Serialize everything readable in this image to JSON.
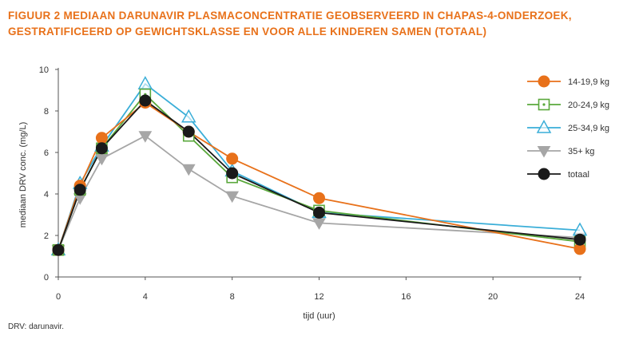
{
  "figure": {
    "title_line1": "FIGUUR 2  MEDIAAN DARUNAVIR PLASMACONCENTRATIE GEOBSERVEERD IN CHAPAS-4-ONDERZOEK,",
    "title_line2": "GESTRATIFICEERD OP GEWICHTSKLASSE EN VOOR ALLE KINDEREN SAMEN (TOTAAL)",
    "footnote": "DRV: darunavir."
  },
  "chart_data": {
    "type": "line",
    "title": "FIGUUR 2  MEDIAAN DARUNAVIR PLASMACONCENTRATIE GEOBSERVEERD IN CHAPAS-4-ONDERZOEK, GESTRATIFICEERD OP GEWICHTSKLASSE EN VOOR ALLE KINDEREN SAMEN (TOTAAL)",
    "xlabel": "tijd (uur)",
    "ylabel": "mediaan DRV conc. (mg/L)",
    "xlim": [
      0,
      24
    ],
    "ylim": [
      0,
      10
    ],
    "xticks": [
      0,
      4,
      8,
      12,
      16,
      20,
      24
    ],
    "yticks": [
      0,
      2,
      4,
      6,
      8,
      10
    ],
    "grid": false,
    "legend_position": "top-right",
    "series": [
      {
        "name": "14-19,9 kg",
        "marker": "filled-circle",
        "color": "#e8711a",
        "x": [
          0,
          1,
          2,
          4,
          6,
          8,
          12,
          24
        ],
        "y": [
          1.3,
          4.4,
          6.7,
          8.4,
          7.0,
          5.7,
          3.8,
          1.35
        ]
      },
      {
        "name": "20-24,9 kg",
        "marker": "open-square-dot",
        "color": "#5aa83c",
        "x": [
          0,
          1,
          2,
          4,
          6,
          8,
          12,
          24
        ],
        "y": [
          1.3,
          4.2,
          6.2,
          8.8,
          6.8,
          4.8,
          3.2,
          1.7
        ]
      },
      {
        "name": "25-34,9 kg",
        "marker": "open-triangle-up",
        "color": "#3aaed8",
        "x": [
          0,
          1,
          2,
          4,
          6,
          8,
          12,
          24
        ],
        "y": [
          1.3,
          4.5,
          6.3,
          9.3,
          7.7,
          5.1,
          3.1,
          2.25
        ]
      },
      {
        "name": "35+ kg",
        "marker": "filled-triangle-down",
        "color": "#a6a6a6",
        "x": [
          0,
          1,
          2,
          4,
          6,
          8,
          12,
          24
        ],
        "y": [
          1.3,
          3.8,
          5.7,
          6.8,
          5.2,
          3.9,
          2.6,
          1.9
        ]
      },
      {
        "name": "totaal",
        "marker": "filled-circle",
        "color": "#1a1a1a",
        "x": [
          0,
          1,
          2,
          4,
          6,
          8,
          12,
          24
        ],
        "y": [
          1.3,
          4.2,
          6.2,
          8.5,
          7.0,
          5.0,
          3.1,
          1.8
        ]
      }
    ]
  }
}
